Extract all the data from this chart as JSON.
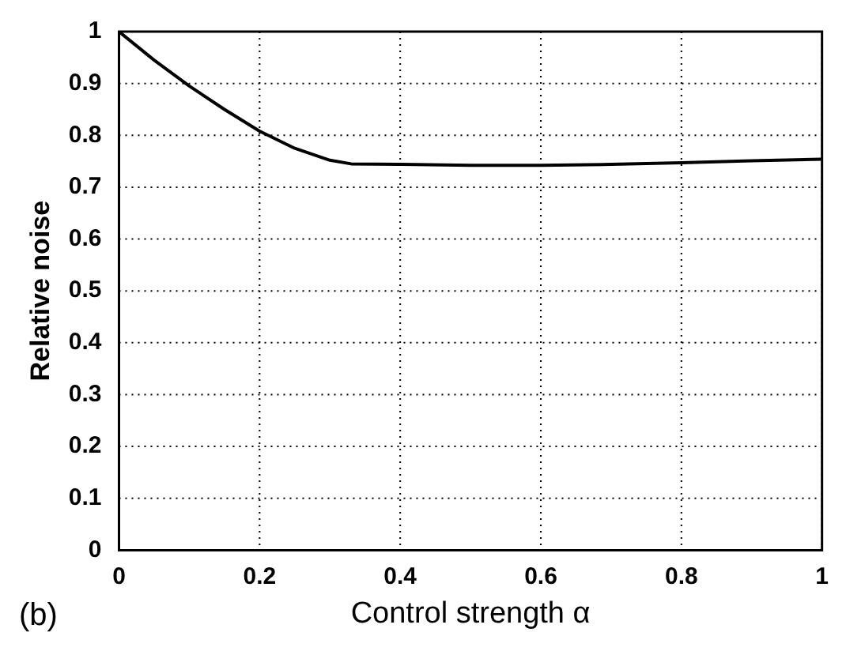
{
  "chart_data": {
    "type": "line",
    "xlabel": "Control strength α",
    "ylabel": "Relative noise",
    "annotations": [
      "(b)"
    ],
    "series": [
      {
        "color": "#000000",
        "x": [
          0,
          0.05,
          0.1,
          0.15,
          0.2,
          0.25,
          0.3,
          0.33,
          0.4,
          0.5,
          0.6,
          0.7,
          0.8,
          0.9,
          1
        ],
        "values": [
          1,
          0.945,
          0.895,
          0.85,
          0.808,
          0.775,
          0.752,
          0.745,
          0.744,
          0.742,
          0.742,
          0.744,
          0.747,
          0.751,
          0.754
        ]
      }
    ],
    "xlim": [
      0,
      1
    ],
    "xticks": [
      0,
      0.2,
      0.4,
      0.6,
      0.8,
      1
    ],
    "ylim": [
      0,
      1
    ],
    "yticks": [
      0,
      0.1,
      0.2,
      0.3,
      0.4,
      0.5,
      0.6,
      0.7,
      0.8,
      0.9,
      1
    ],
    "grid": true,
    "marker": "none",
    "line_style": "solid",
    "legend": false
  }
}
